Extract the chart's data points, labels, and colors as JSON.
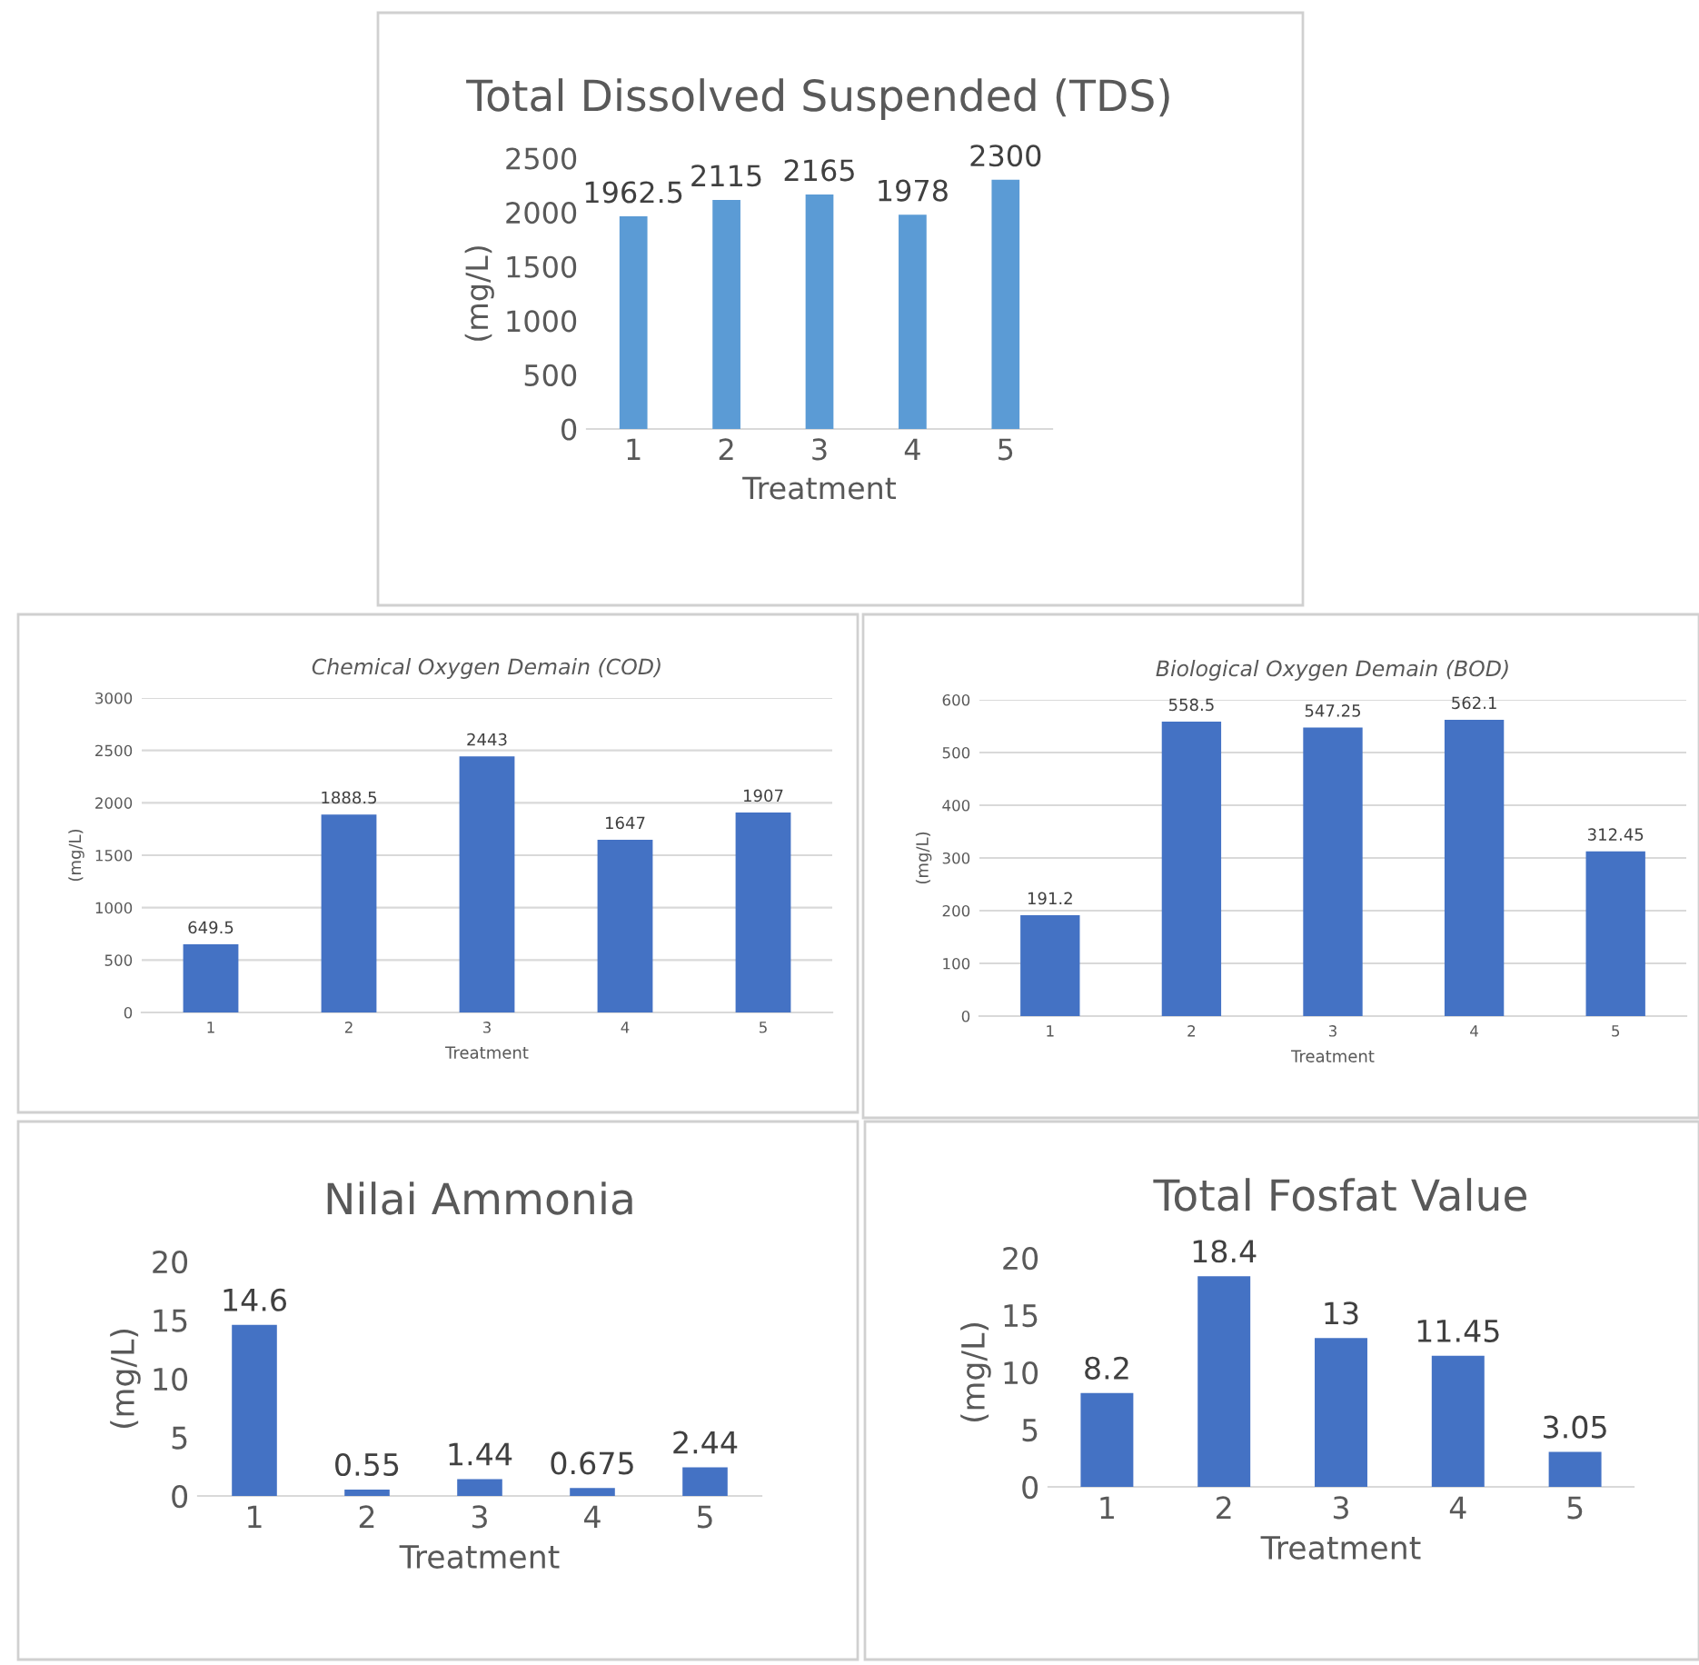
{
  "chart_data": [
    {
      "type": "bar",
      "title": "Total Dissolved Suspended (TDS)",
      "xlabel": "Treatment",
      "ylabel": "(mg/L)",
      "categories": [
        "1",
        "2",
        "3",
        "4",
        "5"
      ],
      "values": [
        1962.5,
        2115,
        2165,
        1978,
        2300
      ],
      "color": "#5b9bd5",
      "ylim": [
        0,
        2500
      ],
      "yticks": [
        0,
        500,
        1000,
        1500,
        2000,
        2500
      ],
      "data_labels": true,
      "grid": false
    },
    {
      "type": "bar",
      "title": "Chemical Oxygen Demain (COD)",
      "xlabel": "Treatment",
      "ylabel": "(mg/L)",
      "categories": [
        "1",
        "2",
        "3",
        "4",
        "5"
      ],
      "values": [
        649.5,
        1888.5,
        2443,
        1647,
        1907
      ],
      "color": "#4472c4",
      "ylim": [
        0,
        3000
      ],
      "yticks": [
        0,
        500,
        1000,
        1500,
        2000,
        2500,
        3000
      ],
      "data_labels": true,
      "grid": "y"
    },
    {
      "type": "bar",
      "title": "Biological Oxygen Demain (BOD)",
      "xlabel": "Treatment",
      "ylabel": "(mg/L)",
      "categories": [
        "1",
        "2",
        "3",
        "4",
        "5"
      ],
      "values": [
        191.2,
        558.5,
        547.25,
        562.1,
        312.45
      ],
      "color": "#4472c4",
      "ylim": [
        0,
        600
      ],
      "yticks": [
        0,
        100,
        200,
        300,
        400,
        500,
        600
      ],
      "data_labels": true,
      "grid": "y"
    },
    {
      "type": "bar",
      "title": "Nilai Ammonia",
      "xlabel": "Treatment",
      "ylabel": "(mg/L)",
      "categories": [
        "1",
        "2",
        "3",
        "4",
        "5"
      ],
      "values": [
        14.6,
        0.55,
        1.44,
        0.675,
        2.44
      ],
      "color": "#4472c4",
      "ylim": [
        0,
        20
      ],
      "yticks": [
        0,
        5,
        10,
        15,
        20
      ],
      "data_labels": true,
      "grid": false
    },
    {
      "type": "bar",
      "title": "Total Fosfat Value",
      "xlabel": "Treatment",
      "ylabel": "(mg/L)",
      "categories": [
        "1",
        "2",
        "3",
        "4",
        "5"
      ],
      "values": [
        8.2,
        18.4,
        13,
        11.45,
        3.05
      ],
      "color": "#4472c4",
      "ylim": [
        0,
        20
      ],
      "yticks": [
        0,
        5,
        10,
        15,
        20
      ],
      "data_labels": true,
      "grid": false
    }
  ]
}
